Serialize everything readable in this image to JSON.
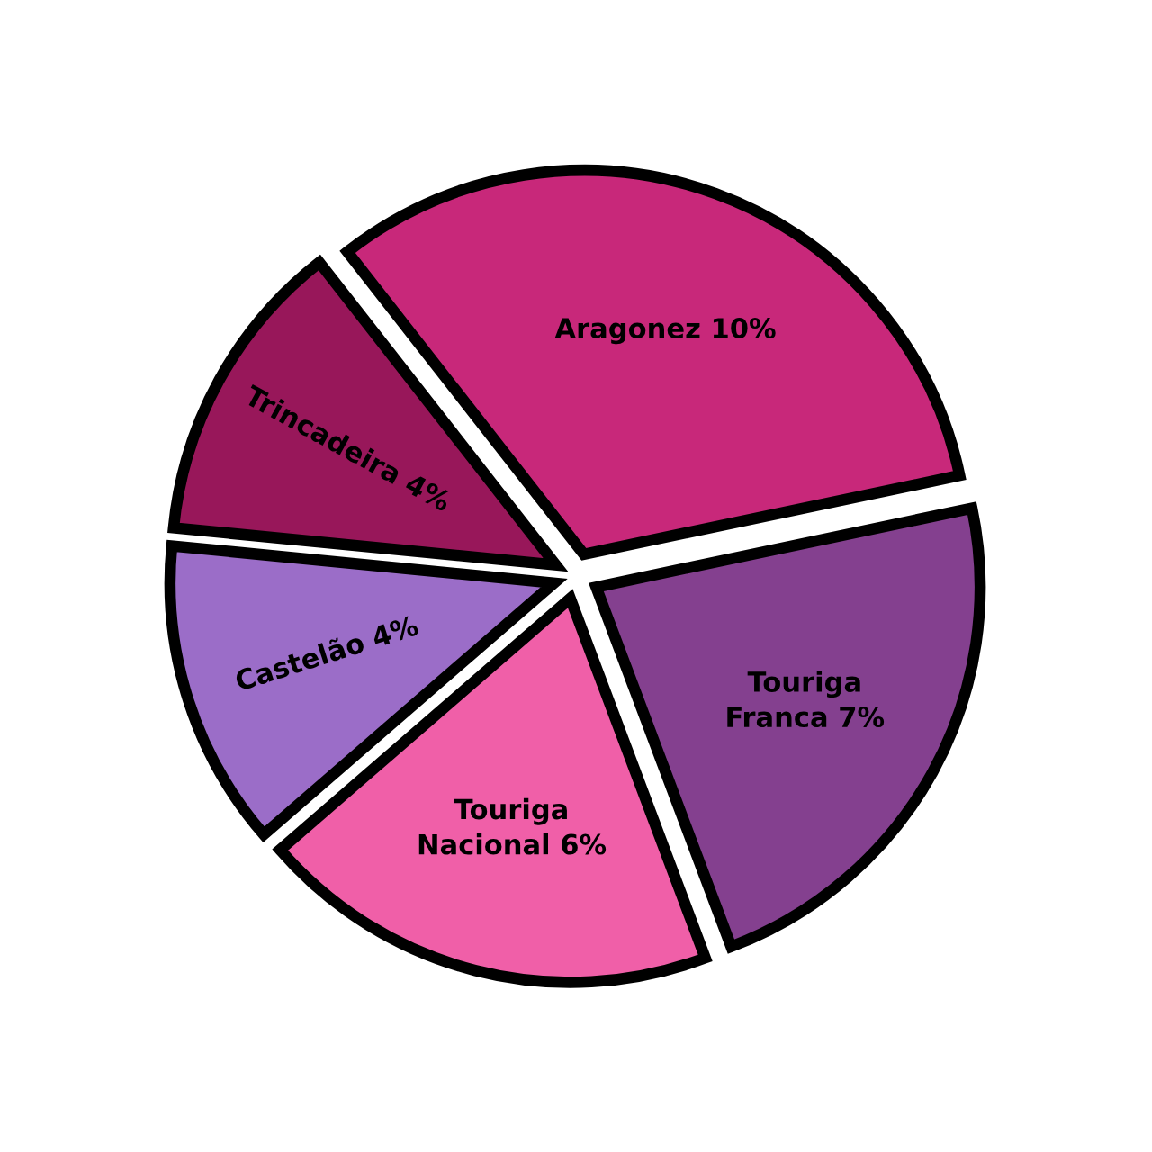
{
  "chart_data": {
    "type": "pie",
    "categories": [
      "Aragonez",
      "Touriga Franca",
      "Touriga Nacional",
      "Castelão",
      "Trincadeira"
    ],
    "values": [
      10,
      7,
      6,
      4,
      4
    ],
    "value_labels": [
      "10%",
      "7%",
      "6%",
      "4%",
      "4%"
    ],
    "colors": [
      "#c8287a",
      "#84408f",
      "#f05fa8",
      "#9b6dc8",
      "#98175a"
    ]
  }
}
